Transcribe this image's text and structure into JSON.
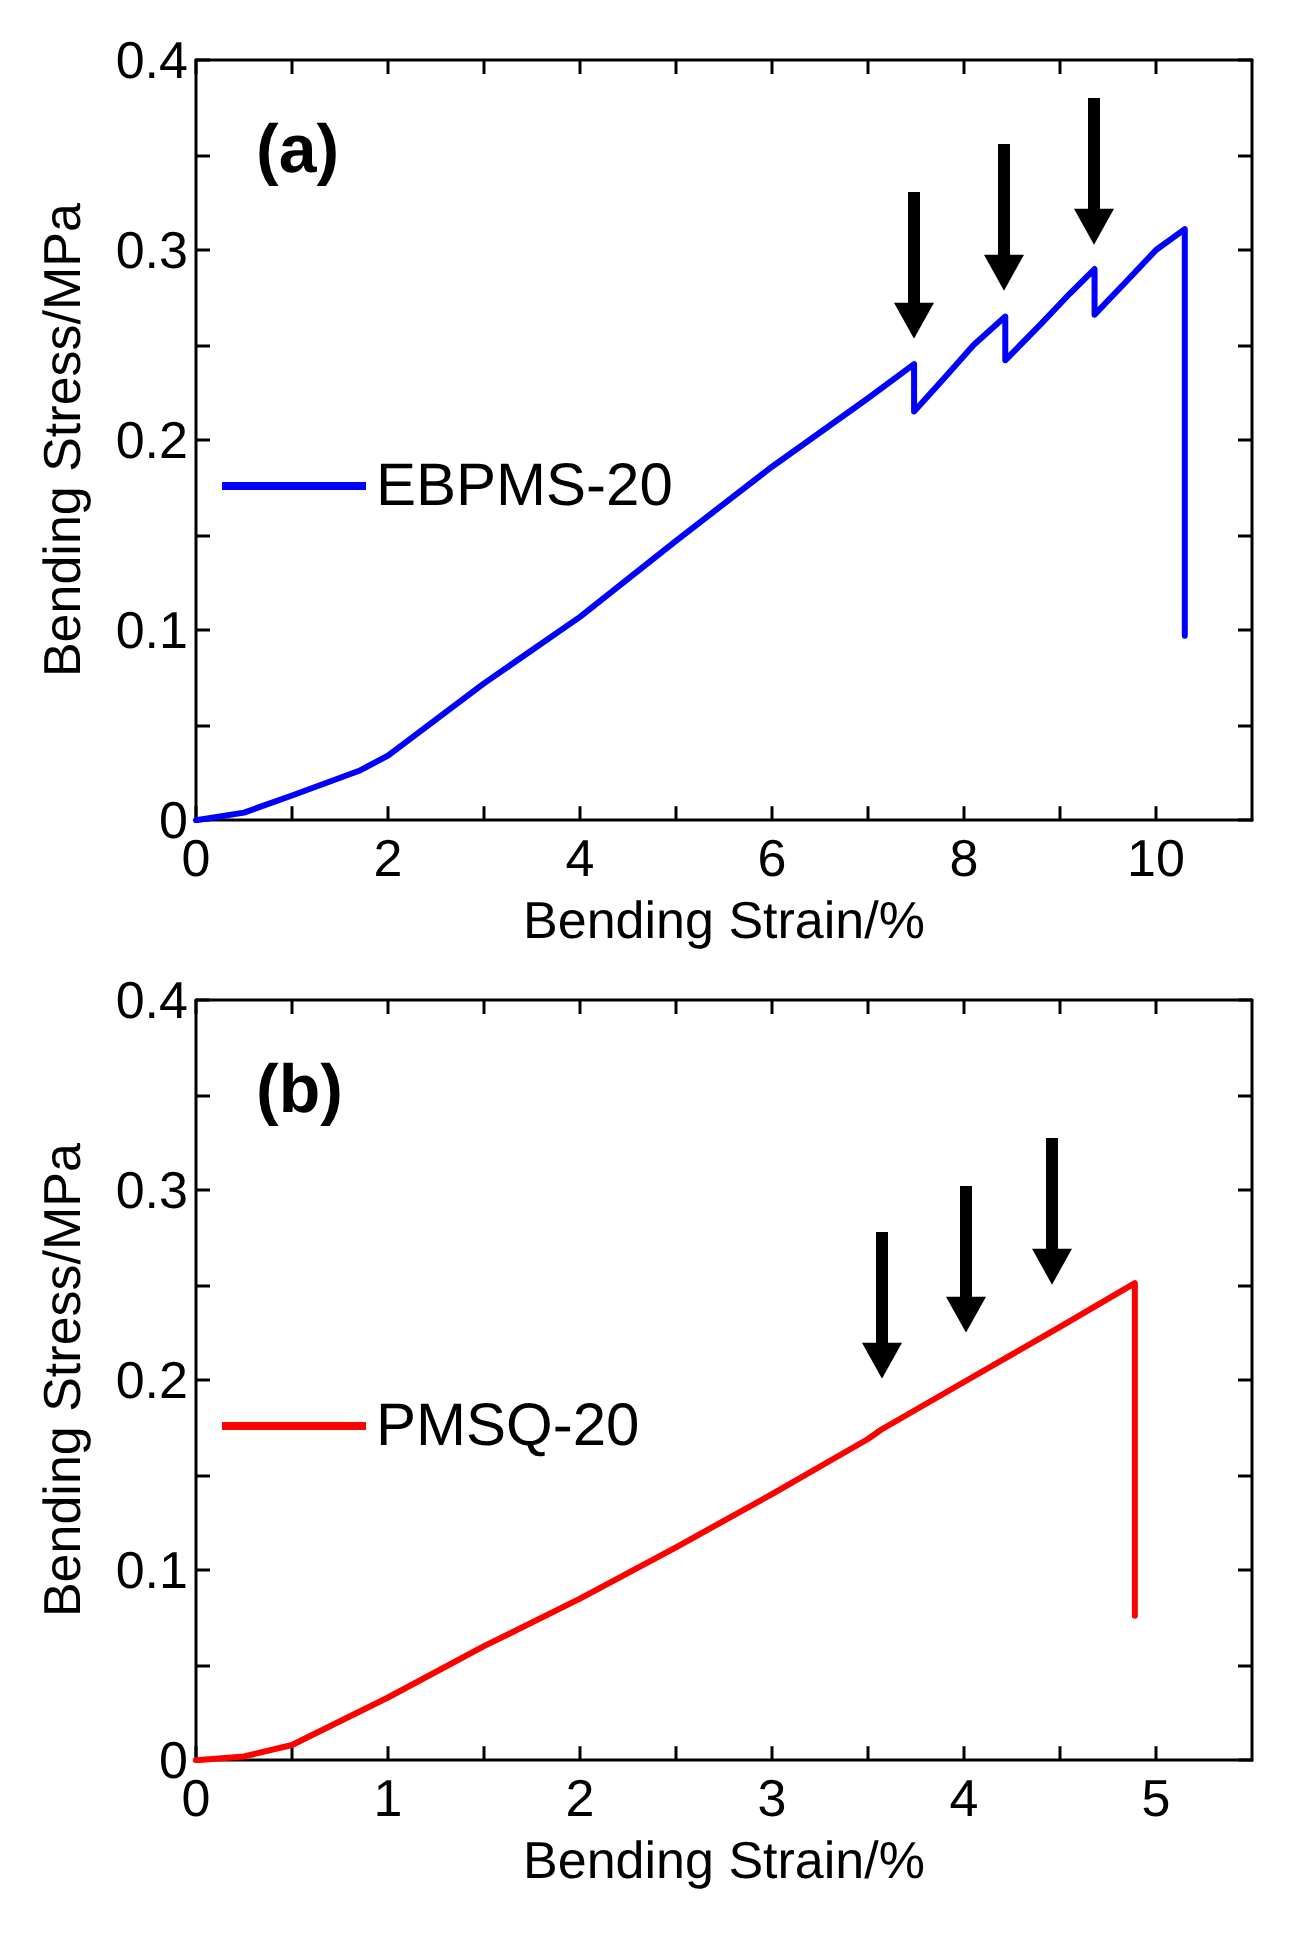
{
  "chart_data": [
    {
      "type": "line",
      "xlabel": "Bending Strain/%",
      "ylabel": "Bending Stress/MPa",
      "annotations": [
        "(a)"
      ],
      "legend": "left",
      "grid": false,
      "marker": "none",
      "line_style": "solid",
      "xlim": [
        0,
        11
      ],
      "xticks": [
        0,
        {
          "value": 1,
          "label": null
        },
        2,
        {
          "value": 3,
          "label": null
        },
        4,
        {
          "value": 5,
          "label": null
        },
        6,
        {
          "value": 7,
          "label": null
        },
        8,
        {
          "value": 9,
          "label": null
        },
        10
      ],
      "ylim": [
        0,
        0.4
      ],
      "yticks": [
        0,
        {
          "value": 0.05,
          "label": null
        },
        0.1,
        {
          "value": 0.15,
          "label": null
        },
        0.2,
        {
          "value": 0.25,
          "label": null
        },
        0.3,
        {
          "value": 0.35,
          "label": null
        },
        0.4
      ],
      "series": [
        {
          "name": "EBPMS-20",
          "color": "#0000ff",
          "x": [
            0,
            0.5,
            1,
            1.7,
            2,
            3,
            4,
            5,
            6,
            7,
            7.48,
            7.48,
            7.8,
            8.1,
            8.43,
            8.43,
            8.8,
            9.1,
            9.36,
            9.36,
            9.7,
            10.0,
            10.3,
            10.3
          ],
          "values": [
            0,
            0.004,
            0.013,
            0.026,
            0.034,
            0.072,
            0.107,
            0.147,
            0.186,
            0.222,
            0.24,
            0.215,
            0.233,
            0.25,
            0.265,
            0.242,
            0.261,
            0.277,
            0.29,
            0.266,
            0.284,
            0.3,
            0.311,
            0.097
          ]
        }
      ]
    },
    {
      "type": "line",
      "xlabel": "Bending Strain/%",
      "ylabel": "Bending Stress/MPa",
      "annotations": [
        "(b)"
      ],
      "legend": "left",
      "grid": false,
      "marker": "none",
      "line_style": "solid",
      "xlim": [
        0,
        5.5
      ],
      "xticks": [
        0,
        {
          "value": 0.5,
          "label": null
        },
        1,
        {
          "value": 1.5,
          "label": null
        },
        2,
        {
          "value": 2.5,
          "label": null
        },
        3,
        {
          "value": 3.5,
          "label": null
        },
        4,
        {
          "value": 4.5,
          "label": null
        },
        5
      ],
      "ylim": [
        0,
        0.4
      ],
      "yticks": [
        0,
        {
          "value": 0.05,
          "label": null
        },
        0.1,
        {
          "value": 0.15,
          "label": null
        },
        0.2,
        {
          "value": 0.25,
          "label": null
        },
        0.3,
        {
          "value": 0.35,
          "label": null
        },
        0.4
      ],
      "series": [
        {
          "name": "PMSQ-20",
          "color": "#ff0000",
          "x": [
            0,
            0.25,
            0.5,
            1,
            1.5,
            2,
            2.5,
            3,
            3.5,
            3.57,
            4,
            4.5,
            4.89,
            4.89
          ],
          "values": [
            0,
            0.002,
            0.008,
            0.033,
            0.06,
            0.085,
            0.112,
            0.14,
            0.169,
            0.174,
            0.199,
            0.228,
            0.251,
            0.076
          ]
        }
      ]
    }
  ]
}
